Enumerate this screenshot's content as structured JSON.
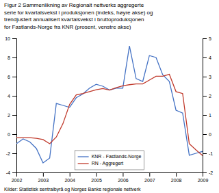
{
  "chart_data": {
    "type": "line",
    "title": [
      "Figur 2 Sammenlikning av Regionalt nettverks aggregerte",
      "serie for kvartalsvekst i produksjonen (indeks, høyre akse) og",
      "trendjustert annualisert kvartalsvekst i bruttoproduksjonen",
      "for Fastlands-Norge fra KNR (prosent, venstre akse)"
    ],
    "annotations": [
      "Kilder: Statistisk sentralbyrå og Norges Banks regionale nettverk"
    ],
    "x": [
      2002.0,
      2002.25,
      2002.5,
      2002.75,
      2003.0,
      2003.25,
      2003.5,
      2003.75,
      2004.0,
      2004.25,
      2004.5,
      2004.75,
      2005.0,
      2005.25,
      2005.5,
      2005.75,
      2006.0,
      2006.25,
      2006.5,
      2006.75,
      2007.0,
      2007.25,
      2007.5,
      2007.75,
      2008.0,
      2008.25,
      2008.5,
      2008.75,
      2009.0
    ],
    "series": [
      {
        "name": "KNR - Fastlands-Norge",
        "color": "#4472c4",
        "values": [
          -1.0,
          -0.5,
          -0.8,
          -1.5,
          -3.0,
          -2.5,
          3.2,
          3.0,
          2.8,
          3.8,
          4.2,
          4.8,
          5.2,
          5.0,
          4.6,
          4.8,
          4.8,
          9.2,
          5.8,
          5.5,
          8.2,
          8.0,
          6.2,
          5.5,
          2.5,
          2.2,
          -2.2,
          -2.0,
          -1.8
        ]
      },
      {
        "name": "RN - Aggregert",
        "color": "#c0392b",
        "axis": "y2",
        "values": [
          -0.18,
          -0.18,
          -0.18,
          -0.22,
          -0.28,
          -0.5,
          -0.15,
          0.55,
          1.55,
          2.05,
          2.12,
          2.22,
          2.32,
          2.38,
          2.3,
          2.42,
          2.52,
          2.58,
          2.62,
          2.62,
          2.82,
          3.02,
          3.02,
          3.12,
          2.22,
          2.12,
          -0.5,
          -0.82,
          -1.12
        ]
      }
    ],
    "xlim": [
      2002,
      2009
    ],
    "xticks": [
      2002,
      2003,
      2004,
      2005,
      2006,
      2007,
      2008,
      2009
    ],
    "ylim": [
      -4,
      10
    ],
    "yticks": [
      -4,
      -2,
      0,
      2,
      4,
      6,
      8,
      10
    ],
    "y2lim": [
      -2,
      5
    ],
    "y2ticks": [
      -2,
      -1,
      0,
      1,
      2,
      3,
      4,
      5
    ],
    "grid": false,
    "legend": "bottom"
  }
}
